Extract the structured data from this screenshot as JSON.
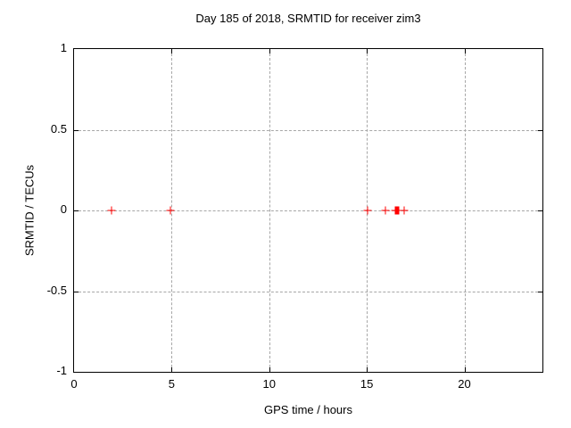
{
  "title": "Day 185 of 2018, SRMTID for receiver zim3",
  "chart_data": {
    "type": "scatter",
    "title": "Day 185 of 2018, SRMTID for receiver zim3",
    "xlabel": "GPS time / hours",
    "ylabel": "SRMTID / TECUs",
    "xlim": [
      0,
      24
    ],
    "ylim": [
      -1,
      1
    ],
    "xticks": [
      0,
      5,
      10,
      15,
      20
    ],
    "yticks": [
      -1,
      -0.5,
      0,
      0.5,
      1
    ],
    "grid": true,
    "legend_position": "none",
    "marker": "plus",
    "marker_color": "#ff0000",
    "grid_color": "#a7a7a7",
    "border_color": "#000000",
    "series": [
      {
        "name": "SRMTID",
        "x": [
          1.9,
          4.95,
          15.05,
          15.95,
          16.45,
          16.5,
          16.55,
          16.6,
          16.65,
          16.9
        ],
        "y": [
          0,
          0,
          0,
          0,
          0,
          0,
          0,
          0,
          0,
          0
        ]
      }
    ]
  }
}
